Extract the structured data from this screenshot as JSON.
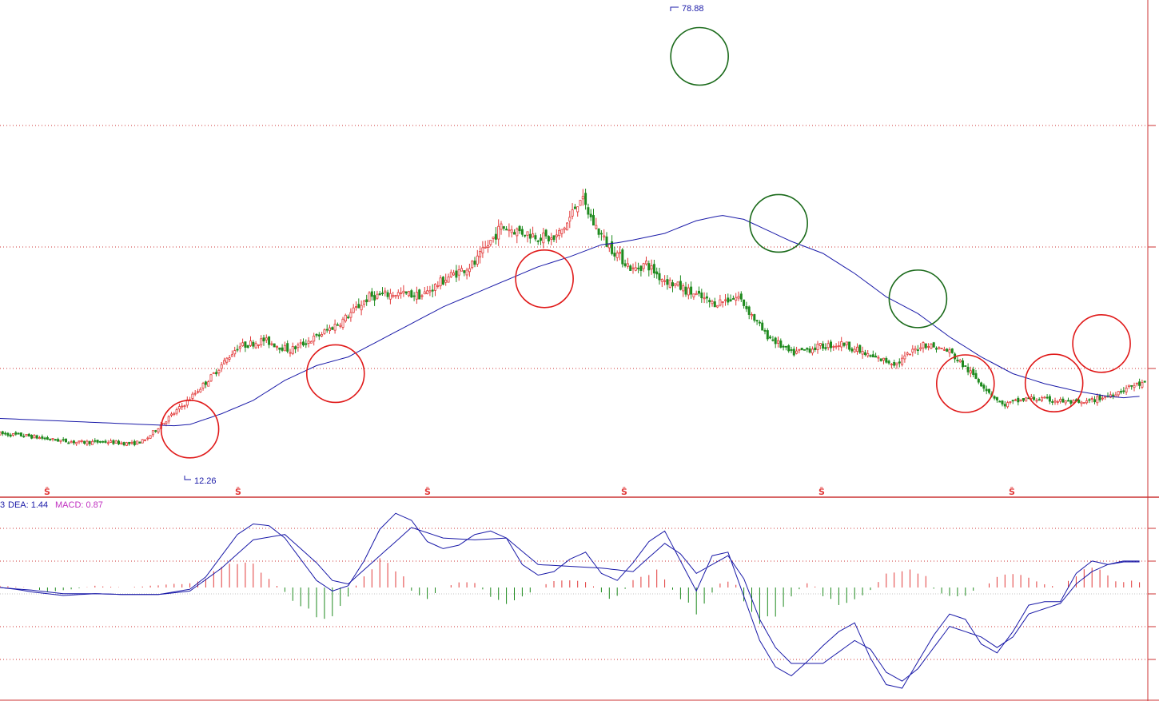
{
  "chart_data": [
    {
      "type": "candlestick",
      "panel": "price",
      "ylim": [
        10,
        80
      ],
      "x_count": 300,
      "annotations": {
        "high_label": "78.88",
        "low_label": "12.26",
        "s_marker": "Ŝ"
      },
      "close_series": [
        [
          0,
          16.5
        ],
        [
          10,
          16.2
        ],
        [
          20,
          15.6
        ],
        [
          30,
          15.2
        ],
        [
          40,
          15.3
        ],
        [
          50,
          15.0
        ],
        [
          55,
          15.5
        ],
        [
          60,
          17.5
        ],
        [
          70,
          21.0
        ],
        [
          80,
          25.0
        ],
        [
          90,
          29.5
        ],
        [
          100,
          30.5
        ],
        [
          110,
          29.0
        ],
        [
          120,
          31.0
        ],
        [
          130,
          33.5
        ],
        [
          140,
          37.0
        ],
        [
          150,
          37.5
        ],
        [
          160,
          37.2
        ],
        [
          170,
          40.0
        ],
        [
          180,
          42.0
        ],
        [
          190,
          47.5
        ],
        [
          200,
          46.5
        ],
        [
          210,
          45.5
        ],
        [
          215,
          48.0
        ],
        [
          220,
          52.0
        ],
        [
          225,
          48.0
        ],
        [
          230,
          45.0
        ],
        [
          240,
          41.0
        ],
        [
          245,
          42.0
        ],
        [
          250,
          40.0
        ],
        [
          260,
          38.0
        ],
        [
          270,
          36.0
        ],
        [
          280,
          37.0
        ],
        [
          290,
          31.5
        ],
        [
          300,
          28.5
        ],
        [
          310,
          29.5
        ],
        [
          320,
          30.0
        ],
        [
          330,
          28.0
        ],
        [
          340,
          27.0
        ],
        [
          350,
          30.0
        ],
        [
          360,
          28.8
        ],
        [
          380,
          20.8
        ],
        [
          390,
          21.8
        ],
        [
          400,
          21.5
        ],
        [
          410,
          21.0
        ],
        [
          420,
          22.2
        ],
        [
          430,
          23.8
        ],
        [
          435,
          24.0
        ]
      ],
      "ma_line": {
        "color": "#1a1aa8",
        "values": [
          [
            0,
            18.8
          ],
          [
            20,
            18.4
          ],
          [
            40,
            18.0
          ],
          [
            50,
            17.8
          ],
          [
            55,
            17.7
          ],
          [
            60,
            17.9
          ],
          [
            70,
            19.5
          ],
          [
            80,
            21.5
          ],
          [
            90,
            24.5
          ],
          [
            100,
            26.7
          ],
          [
            110,
            28.0
          ],
          [
            120,
            30.5
          ],
          [
            130,
            33.0
          ],
          [
            140,
            35.5
          ],
          [
            150,
            37.5
          ],
          [
            160,
            39.5
          ],
          [
            170,
            41.5
          ],
          [
            180,
            43.0
          ],
          [
            190,
            44.8
          ],
          [
            195,
            45.1
          ],
          [
            200,
            45.5
          ],
          [
            210,
            46.5
          ],
          [
            220,
            48.4
          ],
          [
            228,
            49.2
          ],
          [
            235,
            48.6
          ],
          [
            240,
            47.5
          ],
          [
            250,
            45.3
          ],
          [
            260,
            43.5
          ],
          [
            270,
            40.5
          ],
          [
            280,
            37.0
          ],
          [
            290,
            34.5
          ],
          [
            300,
            31.0
          ],
          [
            310,
            28.0
          ],
          [
            320,
            25.5
          ],
          [
            330,
            24.0
          ],
          [
            340,
            22.9
          ],
          [
            350,
            22.1
          ],
          [
            355,
            21.9
          ],
          [
            360,
            22.1
          ]
        ]
      },
      "circles": [
        {
          "x": 60,
          "y": 17.2,
          "color": "red"
        },
        {
          "x": 106,
          "y": 25.5,
          "color": "red"
        },
        {
          "x": 172,
          "y": 39.7,
          "color": "red"
        },
        {
          "x": 221,
          "y": 73.0,
          "color": "green"
        },
        {
          "x": 246,
          "y": 48.0,
          "color": "green"
        },
        {
          "x": 290,
          "y": 36.7,
          "color": "green"
        },
        {
          "x": 305,
          "y": 24.0,
          "color": "red"
        },
        {
          "x": 333,
          "y": 24.1,
          "color": "red"
        },
        {
          "x": 348,
          "y": 30.0,
          "color": "red"
        }
      ],
      "grid": "dotted"
    },
    {
      "type": "line_histogram",
      "panel": "macd",
      "legend": {
        "dif_label": "3",
        "dea_label": "DEA: 1.44",
        "macd_label": "MACD: 0.87"
      },
      "ylim": [
        -6.2,
        4.3
      ],
      "dif": [
        [
          0,
          0
        ],
        [
          5,
          -0.1
        ],
        [
          10,
          -0.25
        ],
        [
          15,
          -0.35
        ],
        [
          20,
          -0.45
        ],
        [
          30,
          -0.35
        ],
        [
          40,
          -0.4
        ],
        [
          50,
          -0.4
        ],
        [
          60,
          -0.1
        ],
        [
          65,
          0.6
        ],
        [
          70,
          1.8
        ],
        [
          75,
          3.0
        ],
        [
          80,
          3.6
        ],
        [
          85,
          3.5
        ],
        [
          90,
          2.8
        ],
        [
          95,
          1.6
        ],
        [
          100,
          0.4
        ],
        [
          105,
          -0.2
        ],
        [
          110,
          0.1
        ],
        [
          115,
          1.5
        ],
        [
          120,
          3.3
        ],
        [
          125,
          4.2
        ],
        [
          130,
          3.8
        ],
        [
          135,
          2.6
        ],
        [
          140,
          2.2
        ],
        [
          145,
          2.4
        ],
        [
          150,
          3.0
        ],
        [
          155,
          3.2
        ],
        [
          160,
          2.8
        ],
        [
          165,
          1.3
        ],
        [
          170,
          0.7
        ],
        [
          175,
          0.9
        ],
        [
          180,
          1.6
        ],
        [
          185,
          2.0
        ],
        [
          190,
          0.8
        ],
        [
          195,
          0.4
        ],
        [
          200,
          1.4
        ],
        [
          205,
          2.6
        ],
        [
          210,
          3.2
        ],
        [
          215,
          1.5
        ],
        [
          220,
          -0.2
        ],
        [
          225,
          1.8
        ],
        [
          230,
          2.0
        ],
        [
          235,
          -0.5
        ],
        [
          240,
          -3.0
        ],
        [
          245,
          -4.5
        ],
        [
          250,
          -5.0
        ],
        [
          255,
          -4.2
        ],
        [
          260,
          -3.3
        ],
        [
          265,
          -2.5
        ],
        [
          270,
          -2.0
        ],
        [
          275,
          -4.0
        ],
        [
          280,
          -5.5
        ],
        [
          285,
          -5.7
        ],
        [
          290,
          -4.2
        ],
        [
          295,
          -2.7
        ],
        [
          300,
          -1.5
        ],
        [
          305,
          -1.8
        ],
        [
          310,
          -3.2
        ],
        [
          315,
          -3.7
        ],
        [
          320,
          -2.5
        ],
        [
          325,
          -1.0
        ],
        [
          330,
          -0.8
        ],
        [
          335,
          -0.8
        ],
        [
          340,
          0.8
        ],
        [
          345,
          1.5
        ],
        [
          350,
          1.3
        ],
        [
          355,
          1.5
        ]
      ],
      "dea": [
        [
          0,
          0
        ],
        [
          10,
          -0.15
        ],
        [
          20,
          -0.35
        ],
        [
          30,
          -0.35
        ],
        [
          40,
          -0.4
        ],
        [
          50,
          -0.4
        ],
        [
          60,
          -0.2
        ],
        [
          70,
          1.1
        ],
        [
          80,
          2.7
        ],
        [
          90,
          3.0
        ],
        [
          100,
          1.4
        ],
        [
          105,
          0.4
        ],
        [
          110,
          0.2
        ],
        [
          120,
          1.8
        ],
        [
          130,
          3.4
        ],
        [
          140,
          2.8
        ],
        [
          150,
          2.7
        ],
        [
          160,
          2.8
        ],
        [
          170,
          1.3
        ],
        [
          180,
          1.2
        ],
        [
          190,
          1.1
        ],
        [
          200,
          0.9
        ],
        [
          210,
          2.5
        ],
        [
          215,
          1.9
        ],
        [
          220,
          0.8
        ],
        [
          225,
          1.3
        ],
        [
          230,
          1.8
        ],
        [
          235,
          0.5
        ],
        [
          240,
          -1.8
        ],
        [
          245,
          -3.4
        ],
        [
          250,
          -4.3
        ],
        [
          260,
          -4.3
        ],
        [
          270,
          -3.0
        ],
        [
          275,
          -3.5
        ],
        [
          280,
          -4.8
        ],
        [
          285,
          -5.3
        ],
        [
          290,
          -4.6
        ],
        [
          300,
          -2.2
        ],
        [
          310,
          -2.8
        ],
        [
          315,
          -3.4
        ],
        [
          320,
          -2.8
        ],
        [
          325,
          -1.5
        ],
        [
          335,
          -0.9
        ],
        [
          340,
          0.2
        ],
        [
          345,
          0.9
        ],
        [
          350,
          1.3
        ],
        [
          355,
          1.45
        ]
      ],
      "hist_envelope": [
        [
          0,
          0.1
        ],
        [
          10,
          0
        ],
        [
          14,
          -0.25
        ],
        [
          20,
          -0.2
        ],
        [
          30,
          0.1
        ],
        [
          40,
          0
        ],
        [
          60,
          0.3
        ],
        [
          65,
          0.6
        ],
        [
          70,
          1.3
        ],
        [
          75,
          1.6
        ],
        [
          80,
          1.4
        ],
        [
          84,
          0.8
        ],
        [
          88,
          0
        ],
        [
          95,
          -1.2
        ],
        [
          102,
          -2.0
        ],
        [
          108,
          -1.4
        ],
        [
          112,
          0
        ],
        [
          118,
          1.6
        ],
        [
          122,
          1.9
        ],
        [
          127,
          0.9
        ],
        [
          130,
          -0.2
        ],
        [
          135,
          -0.7
        ],
        [
          140,
          0
        ],
        [
          145,
          0.3
        ],
        [
          150,
          0.3
        ],
        [
          155,
          -0.6
        ],
        [
          160,
          -1.1
        ],
        [
          165,
          -0.6
        ],
        [
          170,
          0
        ],
        [
          175,
          0.5
        ],
        [
          180,
          0.5
        ],
        [
          185,
          0.4
        ],
        [
          188,
          0
        ],
        [
          192,
          -0.7
        ],
        [
          195,
          -0.6
        ],
        [
          198,
          0
        ],
        [
          200,
          0.5
        ],
        [
          205,
          0.9
        ],
        [
          208,
          1.1
        ],
        [
          210,
          0.5
        ],
        [
          212,
          0
        ],
        [
          215,
          -0.8
        ],
        [
          220,
          -1.6
        ],
        [
          224,
          -0.6
        ],
        [
          228,
          0.4
        ],
        [
          232,
          0.4
        ],
        [
          236,
          -1.2
        ],
        [
          240,
          -2.4
        ],
        [
          244,
          -2.0
        ],
        [
          248,
          -1.0
        ],
        [
          252,
          -0.2
        ],
        [
          256,
          0.4
        ],
        [
          260,
          -0.5
        ],
        [
          265,
          -1.0
        ],
        [
          270,
          -0.8
        ],
        [
          275,
          -0.2
        ],
        [
          280,
          0.9
        ],
        [
          285,
          1.0
        ],
        [
          288,
          1.1
        ],
        [
          292,
          0.9
        ],
        [
          296,
          -0.4
        ],
        [
          300,
          -0.6
        ],
        [
          305,
          -0.5
        ],
        [
          310,
          0
        ],
        [
          315,
          0.6
        ],
        [
          320,
          0.9
        ],
        [
          325,
          0.6
        ],
        [
          330,
          0.2
        ],
        [
          335,
          0
        ],
        [
          340,
          0.8
        ],
        [
          344,
          1.3
        ],
        [
          348,
          1.0
        ],
        [
          352,
          0.5
        ],
        [
          355,
          0.4
        ]
      ],
      "grid": "dotted"
    }
  ],
  "colors": {
    "up": "#e23a3a",
    "down": "#1e8a1e",
    "ma": "#1a1aa8",
    "grid": "#cc3333",
    "circle_red": "#e01a1a",
    "circle_green": "#1a6a1a",
    "dea_text": "#1a1aa8",
    "macd_text": "#c030c0"
  }
}
